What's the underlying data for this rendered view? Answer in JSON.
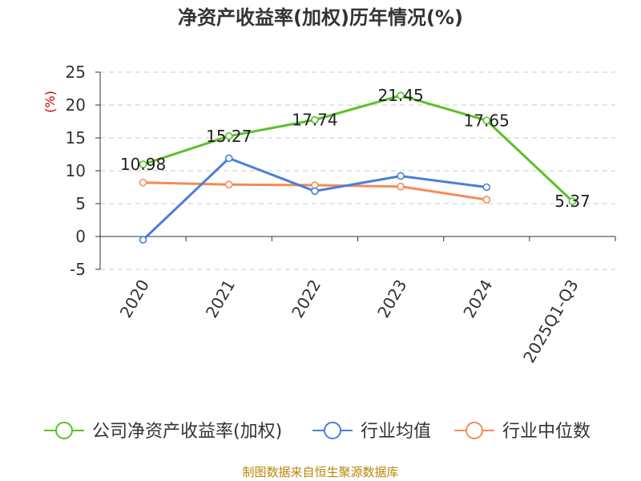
{
  "chart_data": {
    "type": "line",
    "title": "净资产收益率(加权)历年情况(%)",
    "ylabel": "(%)",
    "categories": [
      "2020",
      "2021",
      "2022",
      "2023",
      "2024",
      "2025Q1-Q3"
    ],
    "yticks": [
      "25",
      "20",
      "15",
      "10",
      "5",
      "0",
      "-5"
    ],
    "ylim": [
      -5,
      25
    ],
    "grid": true,
    "legend_position": "bottom",
    "series": [
      {
        "name": "公司净资产收益率(加权)",
        "color": "#5cc02a",
        "values": [
          10.98,
          15.27,
          17.74,
          21.45,
          17.65,
          5.37
        ],
        "labels": [
          "10.98",
          "15.27",
          "17.74",
          "21.45",
          "17.65",
          "5.37"
        ]
      },
      {
        "name": "行业均值",
        "color": "#4a7fd8",
        "values": [
          -0.5,
          11.9,
          6.9,
          9.2,
          7.5,
          null
        ]
      },
      {
        "name": "行业中位数",
        "color": "#f58b56",
        "values": [
          8.2,
          7.9,
          7.8,
          7.6,
          5.6,
          null
        ]
      }
    ]
  },
  "source": "制图数据来自恒生聚源数据库"
}
